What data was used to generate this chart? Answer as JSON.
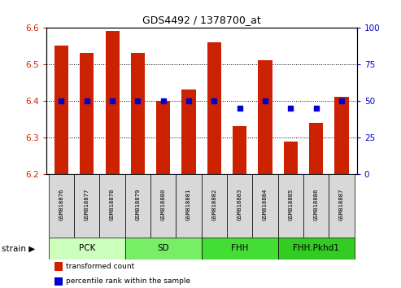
{
  "title": "GDS4492 / 1378700_at",
  "samples": [
    "GSM818876",
    "GSM818877",
    "GSM818878",
    "GSM818879",
    "GSM818880",
    "GSM818881",
    "GSM818882",
    "GSM818883",
    "GSM818884",
    "GSM818885",
    "GSM818886",
    "GSM818887"
  ],
  "red_values": [
    6.55,
    6.53,
    6.59,
    6.53,
    6.4,
    6.43,
    6.56,
    6.33,
    6.51,
    6.29,
    6.34,
    6.41
  ],
  "blue_values": [
    50,
    50,
    50,
    50,
    50,
    50,
    50,
    45,
    50,
    45,
    45,
    50
  ],
  "ylim_left": [
    6.2,
    6.6
  ],
  "ylim_right": [
    0,
    100
  ],
  "yticks_left": [
    6.2,
    6.3,
    6.4,
    6.5,
    6.6
  ],
  "yticks_right": [
    0,
    25,
    50,
    75,
    100
  ],
  "groups": [
    {
      "label": "PCK",
      "start": 0,
      "end": 3,
      "color": "#ccffbb"
    },
    {
      "label": "SD",
      "start": 3,
      "end": 6,
      "color": "#66ee55"
    },
    {
      "label": "FHH",
      "start": 6,
      "end": 9,
      "color": "#44dd33"
    },
    {
      "label": "FHH.Pkhd1",
      "start": 9,
      "end": 12,
      "color": "#33cc22"
    }
  ],
  "bar_color": "#cc2200",
  "dot_color": "#0000cc",
  "bar_bottom": 6.2,
  "legend_items": [
    {
      "label": "transformed count",
      "color": "#cc2200"
    },
    {
      "label": "percentile rank within the sample",
      "color": "#0000cc"
    }
  ],
  "tick_color_left": "#cc2200",
  "tick_color_right": "#0000cc",
  "strain_label": "strain"
}
